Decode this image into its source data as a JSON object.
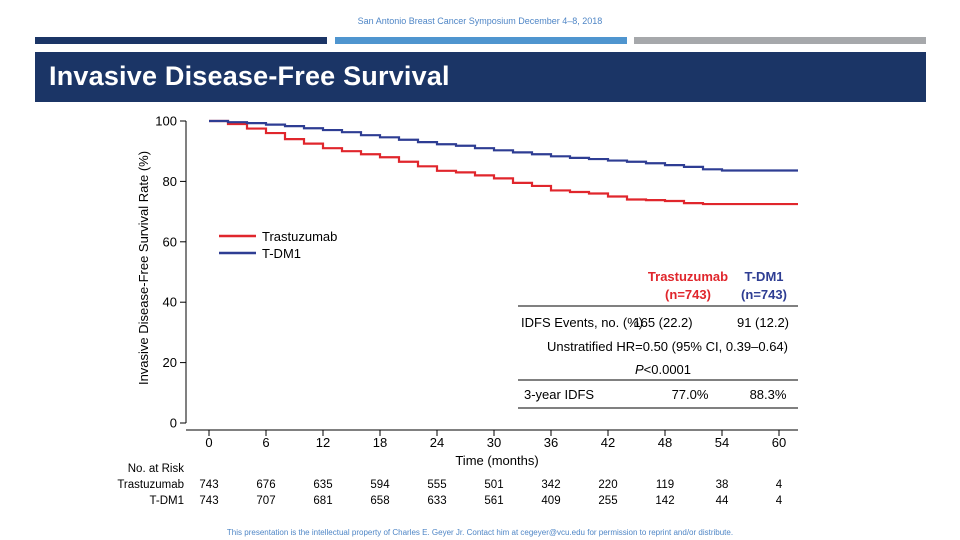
{
  "header": {
    "conference": "San Antonio Breast Cancer Symposium December 4–8, 2018",
    "title": "Invasive Disease-Free Survival"
  },
  "footer": "This presentation is the intellectual property of Charles E. Geyer Jr. Contact him at cegeyer@vcu.edu for permission to reprint and/or distribute.",
  "colors": {
    "trastuzumab": "#e0262c",
    "tdm1": "#2e3d93",
    "title_bar": "#1b3566"
  },
  "chart_data": {
    "type": "line",
    "title": "",
    "xlabel": "Time (months)",
    "ylabel": "Invasive Disease-Free Survival Rate (%)",
    "xlim": [
      0,
      62
    ],
    "ylim": [
      0,
      100
    ],
    "xticks": [
      "0",
      "6",
      "12",
      "18",
      "24",
      "30",
      "36",
      "42",
      "48",
      "54",
      "60"
    ],
    "yticks": [
      "0",
      "20",
      "40",
      "60",
      "80",
      "100"
    ],
    "legend_position": "middle-left",
    "series": [
      {
        "name": "Trastuzumab",
        "color": "#e0262c",
        "x": [
          0,
          2,
          4,
          6,
          8,
          10,
          12,
          14,
          16,
          18,
          20,
          22,
          24,
          26,
          28,
          30,
          32,
          34,
          36,
          38,
          40,
          42,
          44,
          46,
          48,
          50,
          52,
          54,
          56,
          58,
          60,
          62
        ],
        "y": [
          100,
          99,
          97.5,
          96,
          94,
          92.5,
          91,
          90,
          89,
          88,
          86.5,
          85,
          83.5,
          83,
          82,
          81,
          79.5,
          78.5,
          77,
          76.5,
          76,
          75,
          74,
          73.8,
          73.5,
          72.8,
          72.5,
          72.5,
          72.5,
          72.5,
          72.5,
          72.5
        ]
      },
      {
        "name": "T-DM1",
        "color": "#2e3d93",
        "x": [
          0,
          2,
          4,
          6,
          8,
          10,
          12,
          14,
          16,
          18,
          20,
          22,
          24,
          26,
          28,
          30,
          32,
          34,
          36,
          38,
          40,
          42,
          44,
          46,
          48,
          50,
          52,
          54,
          56,
          58,
          60,
          62
        ],
        "y": [
          100,
          99.6,
          99.3,
          98.8,
          98.3,
          97.6,
          97,
          96.3,
          95.3,
          94.6,
          93.8,
          93,
          92.3,
          91.8,
          91,
          90.3,
          89.6,
          89,
          88.3,
          87.8,
          87.4,
          86.9,
          86.5,
          86,
          85.4,
          84.8,
          84,
          83.6,
          83.6,
          83.6,
          83.6,
          83.6
        ]
      }
    ],
    "legend": [
      "Trastuzumab",
      "T-DM1"
    ],
    "at_risk": {
      "label": "No. at Risk",
      "rows": [
        {
          "name": "Trastuzumab",
          "values": [
            "743",
            "676",
            "635",
            "594",
            "555",
            "501",
            "342",
            "220",
            "119",
            "38",
            "4"
          ]
        },
        {
          "name": "T-DM1",
          "values": [
            "743",
            "707",
            "681",
            "658",
            "633",
            "561",
            "409",
            "255",
            "142",
            "44",
            "4"
          ]
        }
      ]
    },
    "summary_table": {
      "col_headers": [
        {
          "name": "Trastuzumab",
          "n": "(n=743)",
          "color": "#e0262c"
        },
        {
          "name": "T-DM1",
          "n": "(n=743)",
          "color": "#2e3d93"
        }
      ],
      "row_events": {
        "label": "IDFS Events, no. (%)",
        "trastuzumab": "165 (22.2)",
        "tdm1": "91 (12.2)"
      },
      "hr": "Unstratified HR=0.50 (95% CI, 0.39–0.64)",
      "p_prefix": "P",
      "p_value": "<0.0001",
      "row_3yr": {
        "label": "3-year IDFS",
        "trastuzumab": "77.0%",
        "tdm1": "88.3%"
      }
    }
  }
}
